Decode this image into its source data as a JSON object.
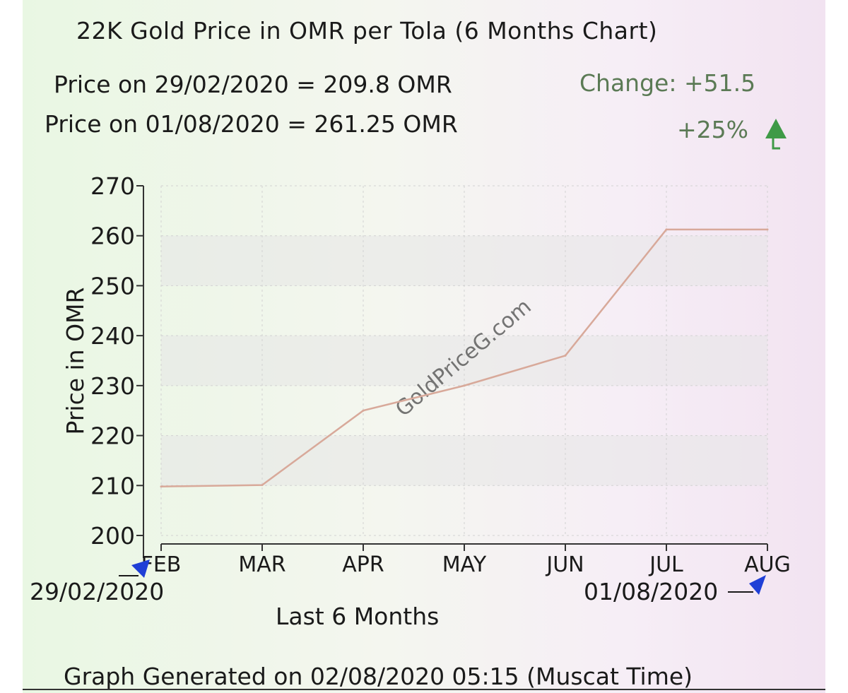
{
  "header": {
    "title": "22K Gold Price in OMR per Tola (6 Months Chart)",
    "price_start": "Price on 29/02/2020 = 209.8 OMR",
    "price_end": "Price on 01/08/2020 = 261.25 OMR",
    "change": "Change: +51.5",
    "percent": "+25%"
  },
  "annotations": {
    "start_date": "29/02/2020",
    "end_date": "01/08/2020",
    "watermark": "GoldPriceG.com"
  },
  "footer": "Graph Generated on 02/08/2020 05:15 (Muscat Time)",
  "colors": {
    "line": "#d8a99a",
    "band": "#e6e6e6",
    "change_text": "#5b7a55",
    "arrow_green": "#3f9a47",
    "marker_blue": "#1f3fd6"
  },
  "chart_data": {
    "type": "line",
    "xlabel": "Last 6 Months",
    "ylabel": "Price in OMR",
    "categories": [
      "FEB",
      "MAR",
      "APR",
      "MAY",
      "JUN",
      "JUL",
      "AUG"
    ],
    "values": [
      209.8,
      210.1,
      225,
      230,
      236,
      261.25,
      261.25
    ],
    "ylim": [
      200,
      270
    ],
    "yticks": [
      200,
      210,
      220,
      230,
      240,
      250,
      260,
      270
    ],
    "grid": true
  }
}
